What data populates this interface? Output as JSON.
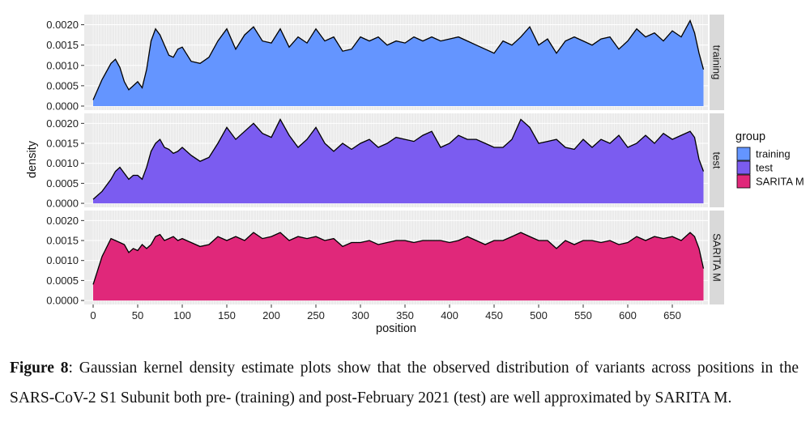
{
  "chart_data": {
    "type": "area",
    "title": "",
    "xlabel": "position",
    "ylabel": "density",
    "xlim": [
      -10,
      690
    ],
    "ylim": [
      -0.0001,
      0.00225
    ],
    "x_ticks": [
      0,
      50,
      100,
      150,
      200,
      250,
      300,
      350,
      400,
      450,
      500,
      550,
      600,
      650
    ],
    "y_ticks": [
      "0.0000",
      "0.0005",
      "0.0010",
      "0.0015",
      "0.0020"
    ],
    "y_tick_values": [
      0,
      0.0005,
      0.001,
      0.0015,
      0.002
    ],
    "grid": true,
    "legend_position": "right",
    "legend_title": "group",
    "x": [
      0,
      10,
      20,
      25,
      30,
      35,
      40,
      45,
      50,
      55,
      60,
      65,
      70,
      75,
      80,
      85,
      90,
      95,
      100,
      110,
      120,
      130,
      140,
      150,
      160,
      170,
      180,
      190,
      200,
      210,
      220,
      230,
      240,
      250,
      260,
      270,
      280,
      290,
      300,
      310,
      320,
      330,
      340,
      350,
      360,
      370,
      380,
      390,
      400,
      410,
      420,
      430,
      440,
      450,
      460,
      470,
      480,
      490,
      500,
      510,
      520,
      530,
      540,
      550,
      560,
      570,
      580,
      590,
      600,
      610,
      620,
      630,
      640,
      650,
      660,
      670,
      675,
      680,
      685
    ],
    "series": [
      {
        "name": "training",
        "color": "#6495FF",
        "values": [
          0.00015,
          0.00065,
          0.00105,
          0.00115,
          0.00095,
          0.0006,
          0.0004,
          0.0005,
          0.0006,
          0.00045,
          0.0009,
          0.0016,
          0.0019,
          0.00175,
          0.0015,
          0.00125,
          0.0012,
          0.0014,
          0.00145,
          0.0011,
          0.00105,
          0.0012,
          0.0016,
          0.0019,
          0.0014,
          0.00175,
          0.00195,
          0.0016,
          0.00155,
          0.0019,
          0.00145,
          0.0017,
          0.00155,
          0.0019,
          0.0016,
          0.0017,
          0.00135,
          0.0014,
          0.0017,
          0.0016,
          0.0017,
          0.0015,
          0.0016,
          0.00155,
          0.0017,
          0.0016,
          0.0017,
          0.0016,
          0.00165,
          0.0017,
          0.0016,
          0.0015,
          0.0014,
          0.0013,
          0.0016,
          0.0015,
          0.0017,
          0.00195,
          0.0015,
          0.00165,
          0.0013,
          0.0016,
          0.0017,
          0.0016,
          0.0015,
          0.00165,
          0.0017,
          0.0014,
          0.0016,
          0.0019,
          0.0017,
          0.0018,
          0.0016,
          0.00185,
          0.0017,
          0.0021,
          0.0018,
          0.0013,
          0.0009
        ]
      },
      {
        "name": "test",
        "color": "#7B5CF0",
        "values": [
          0.0001,
          0.0003,
          0.0006,
          0.0008,
          0.0009,
          0.00075,
          0.0006,
          0.0007,
          0.0007,
          0.0006,
          0.0009,
          0.0013,
          0.0015,
          0.0016,
          0.0014,
          0.00135,
          0.00125,
          0.0013,
          0.0014,
          0.0012,
          0.00105,
          0.00115,
          0.0015,
          0.0019,
          0.0016,
          0.0018,
          0.002,
          0.00175,
          0.00165,
          0.0021,
          0.0017,
          0.0014,
          0.0016,
          0.0019,
          0.0015,
          0.0013,
          0.0015,
          0.00135,
          0.0015,
          0.0016,
          0.0014,
          0.0015,
          0.00165,
          0.0016,
          0.00155,
          0.0017,
          0.0018,
          0.0014,
          0.0015,
          0.0017,
          0.0016,
          0.0016,
          0.0015,
          0.0014,
          0.0014,
          0.0016,
          0.0021,
          0.0019,
          0.0015,
          0.00155,
          0.0016,
          0.0014,
          0.00135,
          0.0016,
          0.0014,
          0.0016,
          0.0015,
          0.0017,
          0.0014,
          0.0015,
          0.0017,
          0.0015,
          0.00175,
          0.0016,
          0.0017,
          0.0018,
          0.00165,
          0.0011,
          0.0008
        ]
      },
      {
        "name": "SARITA M",
        "color": "#E0287A",
        "values": [
          0.0004,
          0.0011,
          0.00155,
          0.0015,
          0.00145,
          0.0014,
          0.0012,
          0.0013,
          0.00125,
          0.0014,
          0.0013,
          0.0014,
          0.0016,
          0.00165,
          0.0015,
          0.00155,
          0.0016,
          0.0015,
          0.00155,
          0.00145,
          0.00135,
          0.0014,
          0.0016,
          0.0015,
          0.0016,
          0.0015,
          0.0017,
          0.00155,
          0.0016,
          0.0017,
          0.0015,
          0.0016,
          0.00155,
          0.0016,
          0.0015,
          0.00155,
          0.00135,
          0.00145,
          0.00145,
          0.0015,
          0.0014,
          0.00145,
          0.0015,
          0.0015,
          0.00145,
          0.0015,
          0.0015,
          0.0015,
          0.00145,
          0.0015,
          0.0016,
          0.0015,
          0.0014,
          0.0015,
          0.0015,
          0.0016,
          0.0017,
          0.0016,
          0.0015,
          0.0015,
          0.0013,
          0.0015,
          0.0014,
          0.0015,
          0.0015,
          0.00145,
          0.0015,
          0.0014,
          0.00145,
          0.0016,
          0.0015,
          0.0016,
          0.00155,
          0.0016,
          0.0015,
          0.0017,
          0.0016,
          0.0013,
          0.0008
        ]
      }
    ]
  },
  "caption": {
    "label": "Figure 8",
    "text": ": Gaussian kernel density estimate plots show that the observed distribution of variants across positions in the SARS-CoV-2 S1 Subunit both pre- (training) and post-February 2021 (test) are well approximated by SARITA M."
  }
}
